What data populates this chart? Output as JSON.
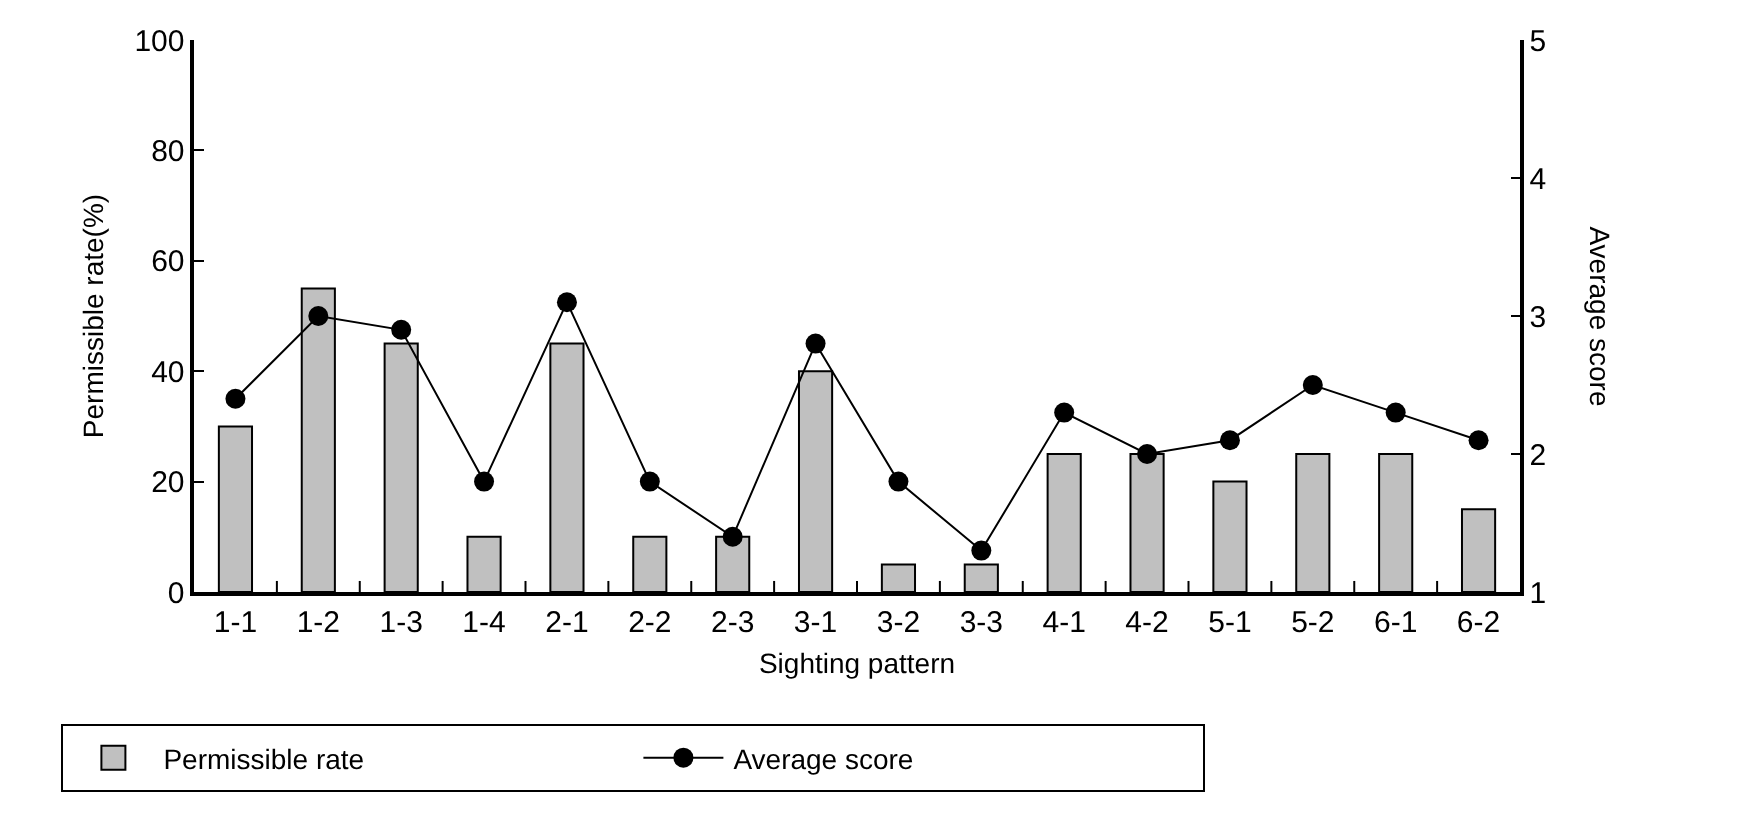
{
  "chart_data": {
    "type": "bar",
    "xlabel": "Sighting pattern",
    "ylabel": "Permissible rate(%)",
    "y2label": "Average score",
    "categories": [
      "1-1",
      "1-2",
      "1-3",
      "1-4",
      "2-1",
      "2-2",
      "2-3",
      "3-1",
      "3-2",
      "3-3",
      "4-1",
      "4-2",
      "5-1",
      "5-2",
      "6-1",
      "6-2"
    ],
    "series": [
      {
        "name": "Permissible rate",
        "color": "#c0c0c0",
        "values": [
          30,
          55,
          45,
          10,
          45,
          10,
          10,
          40,
          5,
          5,
          25,
          25,
          20,
          25,
          25,
          15
        ]
      },
      {
        "name": "Average score",
        "type": "line",
        "axis": "y2",
        "color": "#000000",
        "marker": "circle",
        "values": [
          2.4,
          3.0,
          2.9,
          1.8,
          3.1,
          1.8,
          1.4,
          2.8,
          1.8,
          1.3,
          2.3,
          2.0,
          2.1,
          2.5,
          2.3,
          2.1
        ]
      }
    ],
    "ylim": [
      0,
      100
    ],
    "yticks": [
      0,
      20,
      40,
      60,
      80,
      100
    ],
    "y2lim": [
      1,
      5
    ],
    "y2ticks": [
      1,
      2,
      3,
      4,
      5
    ],
    "legend": "bottom"
  }
}
